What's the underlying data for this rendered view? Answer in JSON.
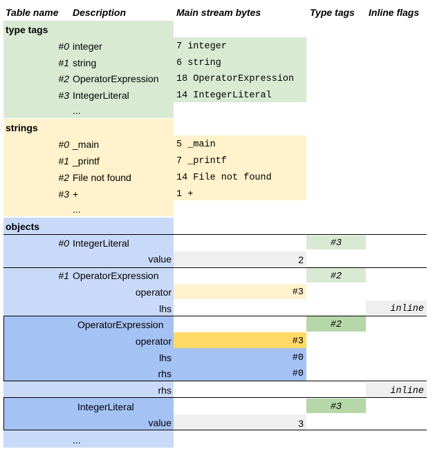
{
  "headers": {
    "table_name": "Table name",
    "description": "Description",
    "main_stream_bytes": "Main stream bytes",
    "type_tags": "Type tags",
    "inline_flags": "Inline flags"
  },
  "type_tags_section": {
    "title": "type tags",
    "rows": [
      {
        "index": "#0",
        "name": "integer",
        "bytes": "7 integer"
      },
      {
        "index": "#1",
        "name": "string",
        "bytes": "6 string"
      },
      {
        "index": "#2",
        "name": "OperatorExpression",
        "bytes": "18 OperatorExpression"
      },
      {
        "index": "#3",
        "name": "IntegerLiteral",
        "bytes": "14 IntegerLiteral"
      }
    ],
    "ellipsis": "..."
  },
  "strings_section": {
    "title": "strings",
    "rows": [
      {
        "index": "#0",
        "name": "_main",
        "bytes": "5 _main"
      },
      {
        "index": "#1",
        "name": "_printf",
        "bytes": "7 _printf"
      },
      {
        "index": "#2",
        "name": "File not found",
        "bytes": "14 File not found"
      },
      {
        "index": "#3",
        "name": "+",
        "bytes": "1 +"
      }
    ],
    "ellipsis": "..."
  },
  "objects_section": {
    "title": "objects",
    "obj0": {
      "index": "#0",
      "name": "IntegerLiteral",
      "type_tag": "#3",
      "field_value": "value",
      "value_bytes": "2"
    },
    "obj1": {
      "index": "#1",
      "name": "OperatorExpression",
      "type_tag": "#2",
      "field_operator": "operator",
      "operator_bytes": "#3",
      "field_lhs": "lhs",
      "lhs_flag": "inline"
    },
    "inline_opexpr": {
      "name": "OperatorExpression",
      "type_tag": "#2",
      "field_operator": "operator",
      "operator_bytes": "#3",
      "field_lhs": "lhs",
      "lhs_bytes": "#0",
      "field_rhs": "rhs",
      "rhs_bytes": "#0"
    },
    "rhs_row": {
      "field_rhs": "rhs",
      "rhs_flag": "inline"
    },
    "inline_intlit": {
      "name": "IntegerLiteral",
      "type_tag": "#3",
      "field_value": "value",
      "value_bytes": "3"
    },
    "ellipsis": "..."
  },
  "colors": {
    "green": "#d9ead3",
    "green_dark": "#b6d7a8",
    "yellow": "#fff2cc",
    "yellow_dark": "#ffd966",
    "blue": "#c9daf8",
    "blue_dark": "#a4c2f4",
    "gray": "#efefef"
  }
}
